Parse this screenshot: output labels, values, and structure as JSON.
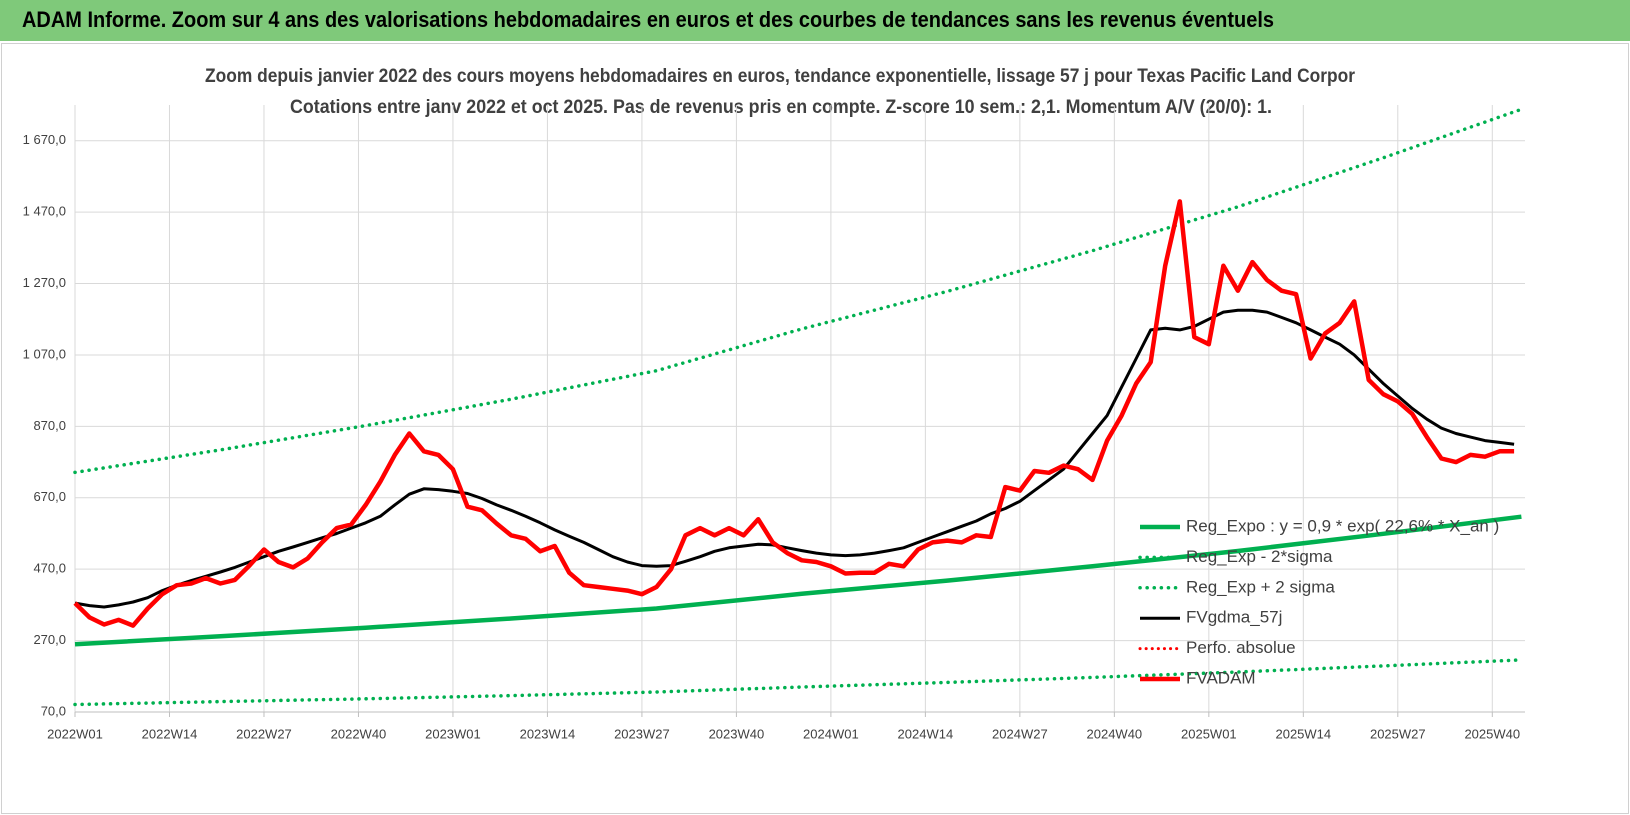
{
  "header": {
    "title": "ADAM Informe. Zoom sur 4 ans des valorisations hebdomadaires en euros et des courbes de tendances sans les revenus éventuels"
  },
  "chart_data": {
    "type": "line",
    "title": "Zoom depuis janvier 2022 des cours moyens hebdomadaires en euros, tendance exponentielle, lissage 57 j pour Texas Pacific Land Corpor",
    "subtitle": "Cotations entre janv 2022 et oct 2025. Pas de revenus pris en compte. Z-score 10 sem.: 2,1. Momentum A/V (20/0): 1.",
    "grid": true,
    "legend": "lower right",
    "xlim": [
      0,
      199.5
    ],
    "ylim": [
      70,
      1770
    ],
    "xticks": [
      {
        "value": 0,
        "label": "2022W01"
      },
      {
        "value": 13,
        "label": "2022W14"
      },
      {
        "value": 26,
        "label": "2022W27"
      },
      {
        "value": 39,
        "label": "2022W40"
      },
      {
        "value": 52,
        "label": "2023W01"
      },
      {
        "value": 65,
        "label": "2023W14"
      },
      {
        "value": 78,
        "label": "2023W27"
      },
      {
        "value": 91,
        "label": "2023W40"
      },
      {
        "value": 104,
        "label": "2024W01"
      },
      {
        "value": 117,
        "label": "2024W14"
      },
      {
        "value": 130,
        "label": "2024W27"
      },
      {
        "value": 143,
        "label": "2024W40"
      },
      {
        "value": 156,
        "label": "2025W01"
      },
      {
        "value": 169,
        "label": "2025W14"
      },
      {
        "value": 182,
        "label": "2025W27"
      },
      {
        "value": 195,
        "label": "2025W40"
      }
    ],
    "yticks": [
      {
        "value": 70,
        "label": "70,0"
      },
      {
        "value": 270,
        "label": "270,0"
      },
      {
        "value": 470,
        "label": "470,0"
      },
      {
        "value": 670,
        "label": "670,0"
      },
      {
        "value": 870,
        "label": "870,0"
      },
      {
        "value": 1070,
        "label": "1 070,0"
      },
      {
        "value": 1270,
        "label": "1 270,0"
      },
      {
        "value": 1470,
        "label": "1 470,0"
      },
      {
        "value": 1670,
        "label": "1 670,0"
      }
    ],
    "x": [
      0,
      2,
      4,
      6,
      8,
      10,
      12,
      14,
      16,
      18,
      20,
      22,
      24,
      26,
      28,
      30,
      32,
      34,
      36,
      38,
      40,
      42,
      44,
      46,
      48,
      50,
      52,
      54,
      56,
      58,
      60,
      62,
      64,
      66,
      68,
      70,
      72,
      74,
      76,
      78,
      80,
      82,
      84,
      86,
      88,
      90,
      92,
      94,
      96,
      98,
      100,
      102,
      104,
      106,
      108,
      110,
      112,
      114,
      116,
      118,
      120,
      122,
      124,
      126,
      128,
      130,
      132,
      134,
      136,
      138,
      140,
      142,
      144,
      146,
      148,
      150,
      152,
      154,
      156,
      158,
      160,
      162,
      164,
      166,
      168,
      170,
      172,
      174,
      176,
      178,
      180,
      182,
      184,
      186,
      188,
      190,
      192,
      194,
      196,
      198
    ],
    "series": [
      {
        "name": "Reg_Expo : y = 0,9 * exp( 22,6% * X_an )",
        "color": "#00b050",
        "style": "solid",
        "width": 4.5,
        "x": [
          0,
          20,
          40,
          60,
          80,
          100,
          120,
          140,
          160,
          180,
          199
        ],
        "values": [
          260,
          282,
          306,
          332,
          360,
          401,
          438,
          478,
          521,
          569,
          617
        ]
      },
      {
        "name": "Reg_Exp - 2*sigma",
        "color": "#00b050",
        "style": "dotted",
        "width": 3.5,
        "x": [
          0,
          20,
          40,
          60,
          80,
          100,
          120,
          140,
          160,
          180,
          199
        ],
        "values": [
          91,
          99,
          107,
          116,
          126,
          140,
          153,
          167,
          182,
          199,
          216
        ]
      },
      {
        "name": "Reg_Exp + 2 sigma",
        "color": "#00b050",
        "style": "dotted",
        "width": 3.5,
        "x": [
          0,
          20,
          40,
          60,
          80,
          100,
          120,
          140,
          160,
          180,
          199
        ],
        "values": [
          741,
          804,
          872,
          946,
          1026,
          1143,
          1248,
          1362,
          1485,
          1622,
          1758
        ]
      },
      {
        "name": "FVgdma_57j",
        "color": "#000000",
        "style": "solid",
        "width": 3,
        "values": [
          375,
          368,
          364,
          370,
          378,
          390,
          410,
          425,
          438,
          450,
          462,
          475,
          490,
          505,
          520,
          532,
          545,
          558,
          570,
          585,
          600,
          618,
          650,
          680,
          695,
          693,
          688,
          682,
          668,
          650,
          635,
          618,
          600,
          580,
          562,
          545,
          525,
          505,
          490,
          480,
          478,
          480,
          492,
          505,
          520,
          530,
          535,
          540,
          538,
          530,
          522,
          515,
          510,
          508,
          510,
          515,
          522,
          530,
          545,
          560,
          575,
          590,
          605,
          625,
          640,
          660,
          690,
          720,
          750,
          800,
          850,
          900,
          980,
          1060,
          1140,
          1145,
          1140,
          1150,
          1170,
          1190,
          1195,
          1195,
          1190,
          1175,
          1160,
          1140,
          1120,
          1100,
          1070,
          1030,
          990,
          955,
          920,
          890,
          865,
          850,
          840,
          830,
          825,
          820
        ]
      },
      {
        "name": "Perfo. absolue",
        "color": "#ff0000",
        "style": "dotted",
        "width": 3,
        "x": [],
        "values": []
      },
      {
        "name": "FVADAM",
        "color": "#ff0000",
        "style": "solid",
        "width": 4.5,
        "values": [
          375,
          335,
          315,
          328,
          312,
          360,
          400,
          425,
          430,
          445,
          430,
          440,
          480,
          525,
          490,
          475,
          500,
          545,
          585,
          595,
          650,
          715,
          790,
          850,
          800,
          790,
          750,
          645,
          635,
          598,
          565,
          555,
          520,
          535,
          460,
          425,
          420,
          415,
          410,
          400,
          420,
          470,
          565,
          585,
          565,
          585,
          565,
          610,
          545,
          515,
          495,
          490,
          478,
          458,
          460,
          460,
          485,
          478,
          525,
          545,
          550,
          545,
          565,
          560,
          700,
          690,
          745,
          740,
          760,
          750,
          720,
          830,
          900,
          990,
          1050,
          1320,
          1500,
          1120,
          1100,
          1320,
          1250,
          1330,
          1280,
          1250,
          1240,
          1060,
          1130,
          1160,
          1220,
          1000,
          960,
          940,
          905,
          840,
          780,
          770,
          790,
          785,
          800,
          800
        ]
      }
    ]
  }
}
